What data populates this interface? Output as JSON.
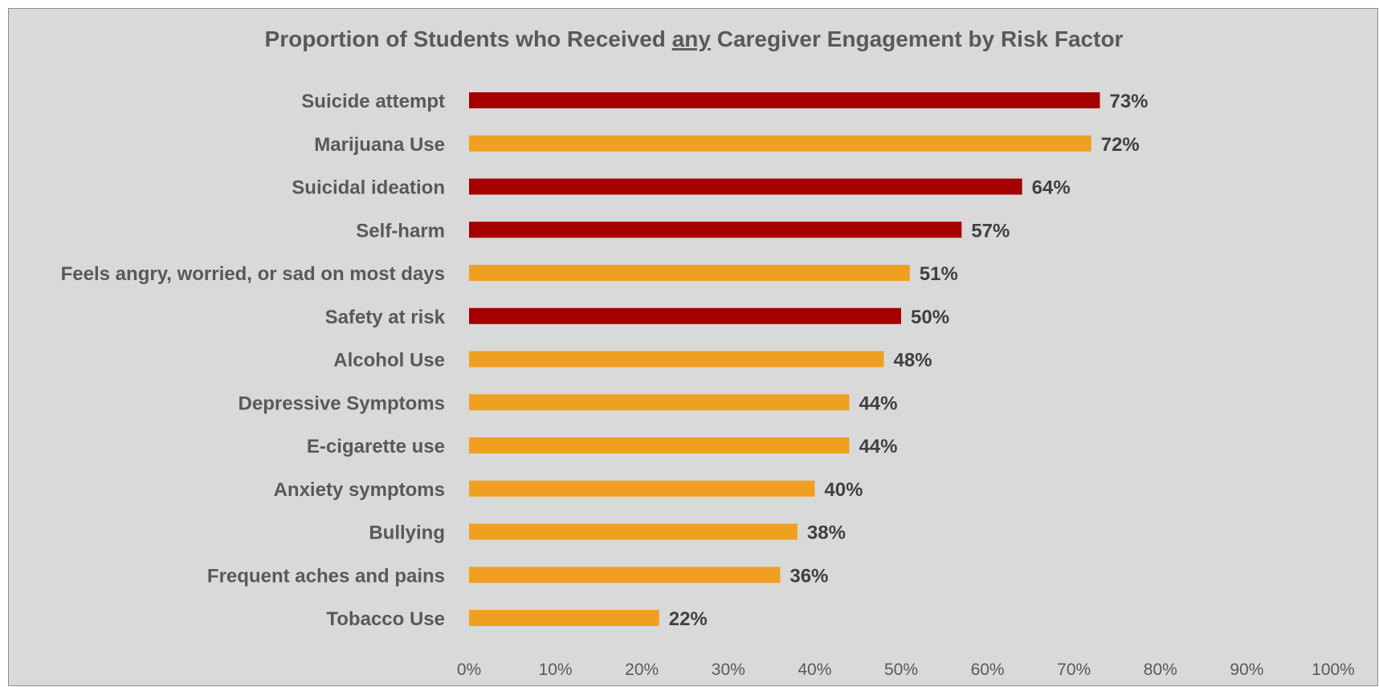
{
  "chart_data": {
    "type": "bar",
    "orientation": "horizontal",
    "title_parts": [
      "Proportion of Students who Received ",
      "any",
      " Caregiver Engagement by Risk Factor"
    ],
    "title_underlined_part": 1,
    "categories": [
      "Suicide attempt",
      "Marijuana Use",
      "Suicidal ideation",
      "Self-harm",
      "Feels angry, worried, or sad on most days",
      "Safety at risk",
      "Alcohol Use",
      "Depressive Symptoms",
      "E-cigarette use",
      "Anxiety symptoms",
      "Bullying",
      "Frequent aches and pains",
      "Tobacco Use"
    ],
    "values": [
      73,
      72,
      64,
      57,
      51,
      50,
      48,
      44,
      44,
      40,
      38,
      36,
      22
    ],
    "data_labels": [
      "73%",
      "72%",
      "64%",
      "57%",
      "51%",
      "50%",
      "48%",
      "44%",
      "44%",
      "40%",
      "38%",
      "36%",
      "22%"
    ],
    "bar_colors": [
      "#a50000",
      "#f0a020",
      "#a50000",
      "#a50000",
      "#f0a020",
      "#a50000",
      "#f0a020",
      "#f0a020",
      "#f0a020",
      "#f0a020",
      "#f0a020",
      "#f0a020",
      "#f0a020"
    ],
    "xlim": [
      0,
      100
    ],
    "x_ticks": [
      "0%",
      "10%",
      "20%",
      "30%",
      "40%",
      "50%",
      "60%",
      "70%",
      "80%",
      "90%",
      "100%"
    ],
    "grid": false,
    "background_color": "#d9d9d9"
  }
}
